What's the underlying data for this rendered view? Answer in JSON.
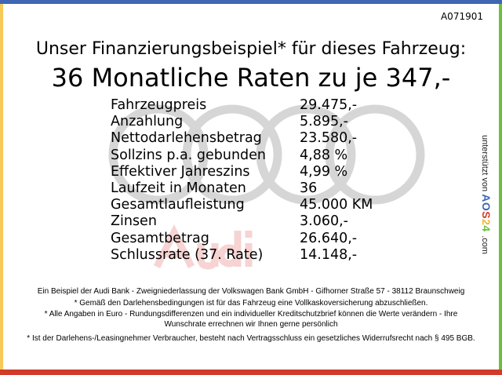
{
  "code": "A071901",
  "heading": "Unser Finanzierungsbeispiel* für dieses Fahrzeug:",
  "title": "36 Monatliche Raten zu je 347,-",
  "watermark_text": "Audi",
  "rows": [
    {
      "label": "Fahrzeugpreis",
      "value": "29.475,-"
    },
    {
      "label": "Anzahlung",
      "value": "5.895,-"
    },
    {
      "label": "Nettodarlehensbetrag",
      "value": "23.580,-"
    },
    {
      "label": "Sollzins p.a. gebunden",
      "value": "4,88 %"
    },
    {
      "label": "Effektiver Jahreszins",
      "value": "4,99 %"
    },
    {
      "label": "Laufzeit in Monaten",
      "value": "36"
    },
    {
      "label": "Gesamtlaufleistung",
      "value": "45.000 KM"
    },
    {
      "label": "Zinsen",
      "value": "3.060,-"
    },
    {
      "label": "Gesamtbetrag",
      "value": "26.640,-"
    },
    {
      "label": "Schlussrate (37. Rate)",
      "value": "14.148,-"
    }
  ],
  "side": {
    "prefix": "unterstützt von",
    "logo": "AOS24",
    "suffix": ".com"
  },
  "footer": [
    "Ein Beispiel der Audi Bank - Zweigniederlassung der Volkswagen Bank GmbH - Gifhorner Straße 57 - 38112 Braunschweig",
    "* Gemäß den Darlehensbedingungen ist für das Fahrzeug eine Vollkaskoversicherung abzuschließen.",
    "* Alle Angaben in Euro - Rundungsdifferenzen und ein individueller Kreditschutzbrief können die Werte verändern - Ihre Wunschrate errechnen wir Ihnen gerne persönlich",
    "* Ist der Darlehens-/Leasingnehmer Verbraucher, besteht nach Vertragsschluss ein gesetzliches Widerrufsrecht nach § 495 BGB."
  ],
  "colors": {
    "top": "#3f66b3",
    "left": "#f7c95a",
    "right": "#6cbf3f",
    "bottom": "#d23a2a",
    "rings": "#d4d4d4"
  }
}
